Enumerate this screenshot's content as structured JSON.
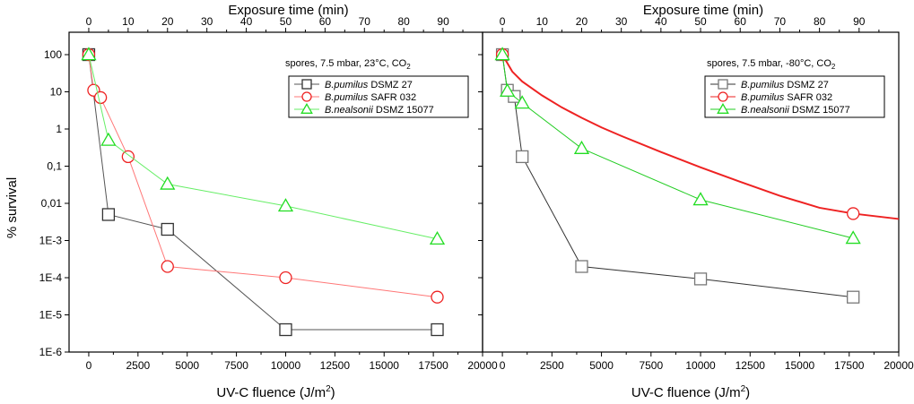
{
  "figure": {
    "y_axis_label": "% survival",
    "y_tick_labels": [
      "100",
      "10",
      "1",
      "0,1",
      "0,01",
      "1E-3",
      "1E-4",
      "1E-5",
      "1E-6"
    ]
  },
  "chart_data": [
    {
      "type": "line",
      "panel": "left",
      "condition": {
        "prefix": "spores,  7.5  mbar,  23°C, CO",
        "subscript": "2"
      },
      "xlabel": "UV-C fluence (J/m",
      "xlabel_sup": "2",
      "xlabel_close": ")",
      "x2label": "Exposure time (min)",
      "xlim": [
        -1000,
        20000
      ],
      "x_ticks": [
        0,
        2500,
        5000,
        7500,
        10000,
        12500,
        15000,
        17500,
        20000
      ],
      "x2lim": [
        -5,
        100
      ],
      "x2_ticks": [
        0,
        10,
        20,
        30,
        40,
        50,
        60,
        70,
        80,
        90
      ],
      "ylim": [
        1e-06,
        400
      ],
      "yscale": "log",
      "series": [
        {
          "name_italic": "B.pumilus",
          "name_rest": " DSMZ 27",
          "marker": "square",
          "color": "#333333",
          "line_color": "#555555",
          "x": [
            0,
            1000,
            4000,
            10000,
            17700
          ],
          "y": [
            100,
            0.005,
            0.002,
            4e-06,
            4e-06
          ]
        },
        {
          "name_italic": "B.pumilus",
          "name_rest": " SAFR 032",
          "marker": "circle",
          "color": "#ee2222",
          "line_color": "#ff7777",
          "x": [
            0,
            250,
            600,
            2000,
            4000,
            10000,
            17700
          ],
          "y": [
            100,
            11,
            7,
            0.18,
            0.0002,
            0.0001,
            3e-05
          ]
        },
        {
          "name_italic": "B.nealsonii",
          "name_rest": " DSMZ 15077",
          "marker": "triangle",
          "color": "#22dd22",
          "line_color": "#66ee66",
          "x": [
            0,
            1000,
            4000,
            10000,
            17700
          ],
          "y": [
            100,
            0.5,
            0.033,
            0.0085,
            0.0011
          ]
        }
      ]
    },
    {
      "type": "line",
      "panel": "right",
      "condition": {
        "prefix": "spores,  7.5  mbar,  -80°C, CO",
        "subscript": "2"
      },
      "xlabel": "UV-C fluence (J/m",
      "xlabel_sup": "2",
      "xlabel_close": ")",
      "x2label": "Exposure time (min)",
      "xlim": [
        -1000,
        20000
      ],
      "x_ticks": [
        0,
        2500,
        5000,
        7500,
        10000,
        12500,
        15000,
        17500,
        20000
      ],
      "x2lim": [
        -5,
        100
      ],
      "x2_ticks": [
        0,
        10,
        20,
        30,
        40,
        50,
        60,
        70,
        80,
        90
      ],
      "ylim": [
        1e-06,
        400
      ],
      "yscale": "log",
      "series": [
        {
          "name_italic": "B.pumilus",
          "name_rest": " DSMZ 27",
          "marker": "square",
          "color": "#777777",
          "line_color": "#333333",
          "x": [
            0,
            250,
            600,
            1000,
            4000,
            10000,
            17700
          ],
          "y": [
            100,
            11,
            7.5,
            0.18,
            0.0002,
            9.25e-05,
            3e-05
          ]
        },
        {
          "name_italic": "B.pumilus",
          "name_rest": " SAFR 032",
          "marker": "circle",
          "color": "#ee2222",
          "line_color": "#ee2222",
          "x": [
            0,
            17700
          ],
          "y": [
            100,
            0.0053
          ],
          "fit_curve": {
            "x": [
              0,
              500,
              1000,
              2000,
              3000,
              4000,
              5000,
              6000,
              8000,
              10000,
              12000,
              14000,
              16000,
              17700,
              20000
            ],
            "y": [
              100,
              35,
              19,
              8,
              3.8,
              2.0,
              1.1,
              0.65,
              0.24,
              0.093,
              0.038,
              0.016,
              0.0076,
              0.0053,
              0.0038
            ]
          }
        },
        {
          "name_italic": "B.nealsonii",
          "name_rest": " DSMZ 15077",
          "marker": "triangle",
          "color": "#22dd22",
          "line_color": "#22cc22",
          "x": [
            0,
            250,
            1000,
            4000,
            10000,
            17700
          ],
          "y": [
            100,
            10.5,
            5,
            0.3,
            0.0125,
            0.00115
          ]
        }
      ]
    }
  ]
}
